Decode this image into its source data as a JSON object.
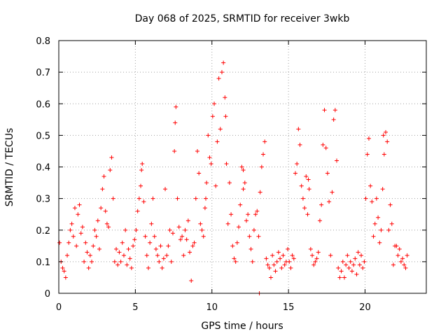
{
  "chart_data": {
    "type": "scatter",
    "title": "Day 068 of 2025, SRMTID for receiver 3wkb",
    "xlabel": "GPS time / hours",
    "ylabel": "SRMTID / TECUs",
    "xlim": [
      0,
      24
    ],
    "ylim": [
      0,
      0.8
    ],
    "x_ticks": [
      0,
      5,
      10,
      15,
      20
    ],
    "x_tick_labels": [
      "0",
      "5",
      "10",
      "15",
      "20"
    ],
    "y_ticks": [
      0,
      0.1,
      0.2,
      0.3,
      0.4,
      0.5,
      0.6,
      0.7,
      0.8
    ],
    "y_tick_labels": [
      "0",
      "0.1",
      "0.2",
      "0.3",
      "0.4",
      "0.5",
      "0.6",
      "0.7",
      "0.8"
    ],
    "grid": true,
    "marker": "+",
    "color": "#ff0000",
    "series": [
      {
        "name": "SRMTID",
        "points": [
          [
            0.05,
            0.16
          ],
          [
            0.15,
            0.1
          ],
          [
            0.25,
            0.08
          ],
          [
            0.35,
            0.07
          ],
          [
            0.45,
            0.05
          ],
          [
            0.55,
            0.12
          ],
          [
            0.65,
            0.16
          ],
          [
            0.75,
            0.2
          ],
          [
            0.85,
            0.22
          ],
          [
            0.95,
            0.18
          ],
          [
            1.05,
            0.27
          ],
          [
            1.15,
            0.15
          ],
          [
            1.25,
            0.25
          ],
          [
            1.35,
            0.28
          ],
          [
            1.45,
            0.19
          ],
          [
            1.55,
            0.21
          ],
          [
            1.65,
            0.1
          ],
          [
            1.75,
            0.16
          ],
          [
            1.85,
            0.13
          ],
          [
            1.95,
            0.08
          ],
          [
            2.05,
            0.12
          ],
          [
            2.15,
            0.1
          ],
          [
            2.25,
            0.15
          ],
          [
            2.35,
            0.2
          ],
          [
            2.45,
            0.18
          ],
          [
            2.55,
            0.23
          ],
          [
            2.65,
            0.14
          ],
          [
            2.75,
            0.27
          ],
          [
            2.85,
            0.33
          ],
          [
            2.95,
            0.37
          ],
          [
            3.05,
            0.26
          ],
          [
            3.15,
            0.22
          ],
          [
            3.25,
            0.21
          ],
          [
            3.35,
            0.39
          ],
          [
            3.45,
            0.43
          ],
          [
            3.55,
            0.3
          ],
          [
            3.65,
            0.1
          ],
          [
            3.75,
            0.14
          ],
          [
            3.85,
            0.09
          ],
          [
            3.95,
            0.13
          ],
          [
            4.05,
            0.1
          ],
          [
            4.15,
            0.16
          ],
          [
            4.25,
            0.12
          ],
          [
            4.35,
            0.2
          ],
          [
            4.45,
            0.09
          ],
          [
            4.55,
            0.14
          ],
          [
            4.65,
            0.11
          ],
          [
            4.75,
            0.08
          ],
          [
            4.85,
            0.15
          ],
          [
            4.95,
            0.17
          ],
          [
            5.05,
            0.2
          ],
          [
            5.15,
            0.26
          ],
          [
            5.25,
            0.3
          ],
          [
            5.35,
            0.34
          ],
          [
            5.45,
            0.41
          ],
          [
            5.55,
            0.29
          ],
          [
            5.65,
            0.18
          ],
          [
            5.75,
            0.12
          ],
          [
            5.85,
            0.08
          ],
          [
            5.95,
            0.16
          ],
          [
            6.05,
            0.22
          ],
          [
            6.15,
            0.3
          ],
          [
            6.25,
            0.18
          ],
          [
            6.35,
            0.14
          ],
          [
            6.45,
            0.12
          ],
          [
            6.55,
            0.1
          ],
          [
            6.65,
            0.15
          ],
          [
            6.75,
            0.08
          ],
          [
            6.85,
            0.11
          ],
          [
            6.95,
            0.33
          ],
          [
            7.05,
            0.12
          ],
          [
            7.15,
            0.15
          ],
          [
            7.25,
            0.2
          ],
          [
            7.35,
            0.1
          ],
          [
            7.45,
            0.19
          ],
          [
            7.55,
            0.45
          ],
          [
            7.65,
            0.59
          ],
          [
            7.75,
            0.3
          ],
          [
            7.85,
            0.21
          ],
          [
            7.95,
            0.17
          ],
          [
            8.05,
            0.18
          ],
          [
            8.15,
            0.12
          ],
          [
            8.25,
            0.2
          ],
          [
            8.35,
            0.17
          ],
          [
            8.45,
            0.23
          ],
          [
            8.55,
            0.13
          ],
          [
            8.65,
            0.04
          ],
          [
            8.75,
            0.15
          ],
          [
            8.85,
            0.16
          ],
          [
            8.95,
            0.3
          ],
          [
            9.05,
            0.45
          ],
          [
            9.15,
            0.38
          ],
          [
            9.25,
            0.22
          ],
          [
            9.35,
            0.2
          ],
          [
            9.45,
            0.18
          ],
          [
            9.55,
            0.27
          ],
          [
            9.65,
            0.35
          ],
          [
            9.75,
            0.5
          ],
          [
            9.85,
            0.43
          ],
          [
            9.95,
            0.41
          ],
          [
            10.05,
            0.56
          ],
          [
            10.15,
            0.6
          ],
          [
            10.25,
            0.34
          ],
          [
            10.35,
            0.48
          ],
          [
            10.45,
            0.68
          ],
          [
            10.55,
            0.52
          ],
          [
            10.65,
            0.7
          ],
          [
            10.75,
            0.73
          ],
          [
            10.85,
            0.62
          ],
          [
            10.95,
            0.41
          ],
          [
            11.05,
            0.22
          ],
          [
            11.15,
            0.35
          ],
          [
            11.25,
            0.25
          ],
          [
            11.35,
            0.15
          ],
          [
            11.45,
            0.11
          ],
          [
            11.55,
            0.1
          ],
          [
            11.65,
            0.16
          ],
          [
            11.75,
            0.21
          ],
          [
            11.85,
            0.28
          ],
          [
            11.95,
            0.4
          ],
          [
            12.05,
            0.33
          ],
          [
            12.15,
            0.35
          ],
          [
            12.25,
            0.23
          ],
          [
            12.35,
            0.25
          ],
          [
            12.45,
            0.18
          ],
          [
            12.55,
            0.14
          ],
          [
            12.65,
            0.1
          ],
          [
            12.75,
            0.2
          ],
          [
            12.85,
            0.25
          ],
          [
            12.95,
            0.26
          ],
          [
            13.05,
            0.18
          ],
          [
            13.15,
            0.32
          ],
          [
            13.25,
            0.4
          ],
          [
            13.35,
            0.44
          ],
          [
            13.45,
            0.48
          ],
          [
            13.55,
            0.11
          ],
          [
            13.65,
            0.09
          ],
          [
            13.75,
            0.08
          ],
          [
            13.85,
            0.05
          ],
          [
            13.95,
            0.12
          ],
          [
            14.05,
            0.09
          ],
          [
            14.15,
            0.07
          ],
          [
            14.25,
            0.1
          ],
          [
            14.35,
            0.13
          ],
          [
            14.45,
            0.11
          ],
          [
            14.55,
            0.08
          ],
          [
            14.65,
            0.12
          ],
          [
            14.75,
            0.09
          ],
          [
            14.85,
            0.1
          ],
          [
            14.95,
            0.14
          ],
          [
            15.05,
            0.1
          ],
          [
            15.15,
            0.08
          ],
          [
            15.25,
            0.12
          ],
          [
            15.35,
            0.11
          ],
          [
            15.45,
            0.38
          ],
          [
            15.55,
            0.41
          ],
          [
            15.65,
            0.52
          ],
          [
            15.75,
            0.47
          ],
          [
            15.85,
            0.34
          ],
          [
            15.95,
            0.3
          ],
          [
            16.05,
            0.27
          ],
          [
            16.15,
            0.37
          ],
          [
            16.25,
            0.25
          ],
          [
            16.35,
            0.33
          ],
          [
            16.45,
            0.14
          ],
          [
            16.55,
            0.12
          ],
          [
            16.65,
            0.09
          ],
          [
            16.75,
            0.1
          ],
          [
            16.85,
            0.11
          ],
          [
            16.95,
            0.13
          ],
          [
            17.05,
            0.23
          ],
          [
            17.15,
            0.28
          ],
          [
            17.25,
            0.47
          ],
          [
            17.35,
            0.58
          ],
          [
            17.45,
            0.46
          ],
          [
            17.55,
            0.38
          ],
          [
            17.65,
            0.29
          ],
          [
            17.75,
            0.12
          ],
          [
            17.85,
            0.32
          ],
          [
            17.95,
            0.55
          ],
          [
            18.05,
            0.58
          ],
          [
            18.15,
            0.42
          ],
          [
            18.25,
            0.08
          ],
          [
            18.35,
            0.05
          ],
          [
            18.45,
            0.07
          ],
          [
            18.55,
            0.1
          ],
          [
            18.65,
            0.05
          ],
          [
            18.75,
            0.09
          ],
          [
            18.85,
            0.12
          ],
          [
            18.95,
            0.08
          ],
          [
            19.05,
            0.1
          ],
          [
            19.15,
            0.07
          ],
          [
            19.25,
            0.09
          ],
          [
            19.35,
            0.11
          ],
          [
            19.45,
            0.06
          ],
          [
            19.55,
            0.13
          ],
          [
            19.65,
            0.09
          ],
          [
            19.75,
            0.12
          ],
          [
            19.85,
            0.08
          ],
          [
            19.95,
            0.1
          ],
          [
            20.05,
            0.3
          ],
          [
            20.15,
            0.44
          ],
          [
            20.25,
            0.49
          ],
          [
            20.35,
            0.34
          ],
          [
            20.45,
            0.29
          ],
          [
            20.55,
            0.18
          ],
          [
            20.65,
            0.22
          ],
          [
            20.75,
            0.3
          ],
          [
            20.85,
            0.24
          ],
          [
            20.95,
            0.16
          ],
          [
            21.05,
            0.2
          ],
          [
            21.15,
            0.33
          ],
          [
            21.25,
            0.44
          ],
          [
            21.35,
            0.51
          ],
          [
            21.45,
            0.48
          ],
          [
            21.55,
            0.2
          ],
          [
            21.65,
            0.28
          ],
          [
            21.75,
            0.22
          ],
          [
            21.85,
            0.09
          ],
          [
            21.95,
            0.15
          ],
          [
            22.05,
            0.15
          ],
          [
            22.15,
            0.12
          ],
          [
            22.25,
            0.14
          ],
          [
            22.35,
            0.1
          ],
          [
            22.45,
            0.11
          ],
          [
            22.55,
            0.09
          ],
          [
            22.65,
            0.08
          ],
          [
            22.75,
            0.12
          ],
          [
            13.1,
            0.0
          ],
          [
            9.6,
            0.3
          ],
          [
            10.9,
            0.56
          ],
          [
            7.6,
            0.54
          ],
          [
            12.05,
            0.39
          ],
          [
            16.3,
            0.36
          ],
          [
            21.2,
            0.5
          ],
          [
            5.4,
            0.39
          ]
        ]
      }
    ]
  }
}
